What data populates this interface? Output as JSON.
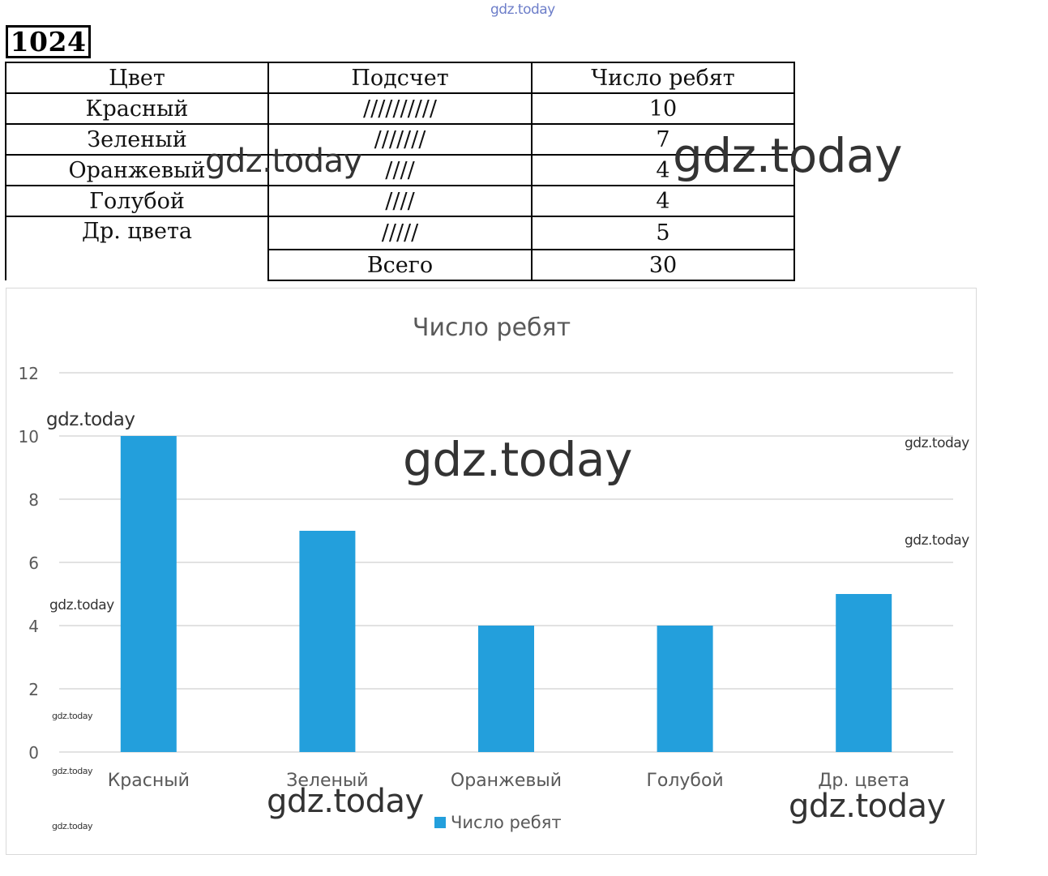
{
  "problem_number": "1024",
  "table": {
    "headers": [
      "Цвет",
      "Подсчет",
      "Число ребят"
    ],
    "rows": [
      {
        "color": "Красный",
        "tally": "//////////",
        "count": "10"
      },
      {
        "color": "Зеленый",
        "tally": "///////",
        "count": "7"
      },
      {
        "color": "Оранжевый",
        "tally": "////",
        "count": "4"
      },
      {
        "color": "Голубой",
        "tally": "////",
        "count": "4"
      },
      {
        "color": "Др. цвета",
        "tally": "/////",
        "count": "5"
      }
    ],
    "total_label": "Всего",
    "total_value": "30"
  },
  "chart_data": {
    "type": "bar",
    "title": "Число ребят",
    "categories": [
      "Красный",
      "Зеленый",
      "Оранжевый",
      "Голубой",
      "Др. цвета"
    ],
    "series": [
      {
        "name": "Число ребят",
        "values": [
          10,
          7,
          4,
          4,
          5
        ],
        "color": "#239fdc"
      }
    ],
    "ylim": [
      0,
      12
    ],
    "yticks": [
      0,
      2,
      4,
      6,
      8,
      10,
      12
    ],
    "grid": true,
    "legend": "bottom",
    "gridline_color": "#d9d9d9"
  },
  "watermarks": [
    "gdz.today",
    "gdz.today",
    "gdz.today",
    "gdz.today",
    "gdz.today",
    "gdz.today",
    "gdz.today",
    "gdz.today",
    "gdz.today",
    "gdz.today",
    "gdz.today",
    "gdz.today",
    "gdz.today"
  ]
}
